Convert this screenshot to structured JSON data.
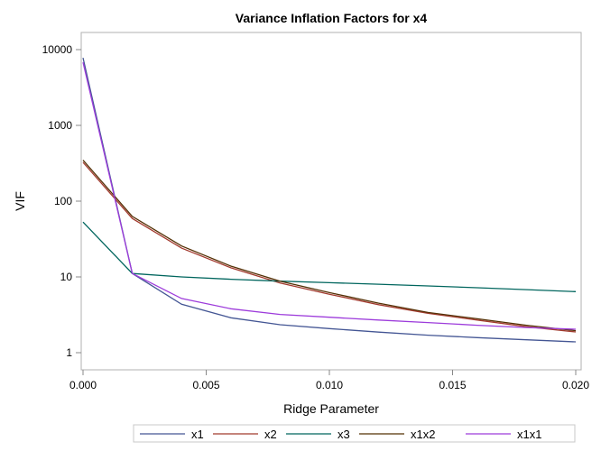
{
  "chart_data": {
    "type": "line",
    "title": "Variance Inflation Factors for x4",
    "xlabel": "Ridge Parameter",
    "ylabel": "VIF",
    "xlim": [
      0,
      0.02
    ],
    "ylim": [
      1,
      10000
    ],
    "yscale": "log",
    "grid": false,
    "legend_position": "bottom",
    "x_ticks": [
      "0.000",
      "0.005",
      "0.010",
      "0.015",
      "0.020"
    ],
    "x_tick_values": [
      0,
      0.005,
      0.01,
      0.015,
      0.02
    ],
    "y_ticks": [
      "1",
      "10",
      "100",
      "1000",
      "10000"
    ],
    "y_tick_values": [
      1,
      10,
      100,
      1000,
      10000
    ],
    "x": [
      0,
      0.002,
      0.004,
      0.006,
      0.008,
      0.01,
      0.012,
      0.014,
      0.016,
      0.018,
      0.02
    ],
    "series": [
      {
        "name": "x1",
        "color": "#445694",
        "values": [
          7800,
          11.1,
          4.36,
          2.89,
          2.34,
          2.08,
          1.87,
          1.7,
          1.58,
          1.48,
          1.39
        ]
      },
      {
        "name": "x2",
        "color": "#a23a2e",
        "values": [
          325,
          59,
          24,
          13.2,
          8.3,
          5.9,
          4.3,
          3.3,
          2.7,
          2.2,
          1.88
        ]
      },
      {
        "name": "x3",
        "color": "#01665e",
        "values": [
          53,
          11.1,
          10,
          9.3,
          8.8,
          8.4,
          8.0,
          7.6,
          7.2,
          6.8,
          6.4
        ]
      },
      {
        "name": "x1x2",
        "color": "#543005",
        "values": [
          347,
          63,
          25.6,
          13.9,
          8.8,
          6.2,
          4.5,
          3.4,
          2.8,
          2.3,
          1.95
        ]
      },
      {
        "name": "x1x1",
        "color": "#9d3cdb",
        "values": [
          6800,
          11.1,
          5.2,
          3.8,
          3.2,
          2.94,
          2.7,
          2.5,
          2.3,
          2.15,
          2.04
        ]
      }
    ]
  }
}
